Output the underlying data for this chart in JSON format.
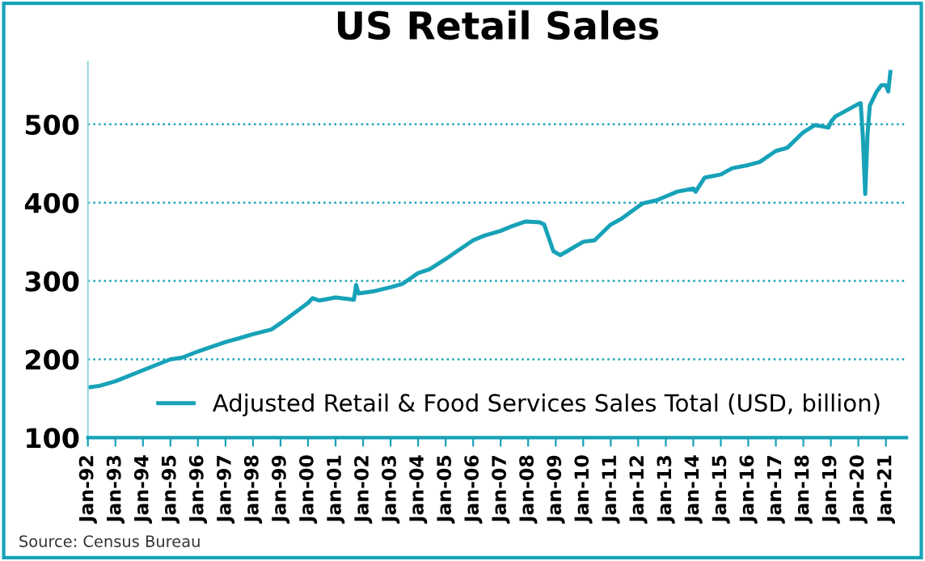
{
  "chart_data": {
    "type": "line",
    "title": "US Retail Sales",
    "annotations": [
      "Source: Census Bureau"
    ],
    "x": [
      "1992-01",
      "1992-06",
      "1993-01",
      "1994-01",
      "1995-01",
      "1995-06",
      "1996-01",
      "1997-01",
      "1997-06",
      "1998-01",
      "1998-09",
      "1999-01",
      "2000-01",
      "2000-03",
      "2000-06",
      "2001-01",
      "2001-09",
      "2001-10",
      "2001-11",
      "2002-06",
      "2003-01",
      "2003-06",
      "2004-01",
      "2004-06",
      "2005-01",
      "2005-06",
      "2006-01",
      "2006-06",
      "2007-01",
      "2007-06",
      "2007-12",
      "2008-06",
      "2008-08",
      "2008-10",
      "2008-12",
      "2009-03",
      "2009-06",
      "2010-01",
      "2010-06",
      "2011-01",
      "2011-06",
      "2012-01",
      "2012-03",
      "2012-09",
      "2013-01",
      "2013-06",
      "2014-01",
      "2014-02",
      "2014-06",
      "2015-01",
      "2015-06",
      "2016-01",
      "2016-06",
      "2017-01",
      "2017-06",
      "2018-01",
      "2018-06",
      "2018-12",
      "2019-01",
      "2019-03",
      "2020-01",
      "2020-02",
      "2020-03",
      "2020-04",
      "2020-05",
      "2020-06",
      "2020-09",
      "2020-11",
      "2021-01",
      "2021-02",
      "2021-03"
    ],
    "series": [
      {
        "name": "Adjusted Retail & Food Services Sales Total (USD, billion)",
        "color": "#17a2b8",
        "values": [
          164,
          166,
          172,
          186,
          200,
          202,
          210,
          222,
          226,
          232,
          238,
          246,
          272,
          278,
          275,
          279,
          276,
          295,
          284,
          287,
          292,
          296,
          310,
          315,
          328,
          338,
          352,
          358,
          364,
          370,
          376,
          375,
          372,
          355,
          338,
          333,
          338,
          350,
          352,
          372,
          380,
          395,
          399,
          403,
          408,
          414,
          418,
          414,
          432,
          436,
          444,
          448,
          452,
          466,
          470,
          490,
          499,
          496,
          503,
          510,
          526,
          527,
          484,
          411,
          486,
          524,
          542,
          550,
          550,
          542,
          567
        ]
      }
    ],
    "ylim": [
      100,
      580
    ],
    "yticks": [
      100,
      200,
      300,
      400,
      500
    ],
    "xlim": [
      "1992-01",
      "2021-10"
    ],
    "xticks": [
      {
        "value": "1992-01",
        "label": "Jan-92"
      },
      {
        "value": "1993-01",
        "label": "Jan-93"
      },
      {
        "value": "1994-01",
        "label": "Jan-94"
      },
      {
        "value": "1995-01",
        "label": "Jan-95"
      },
      {
        "value": "1996-01",
        "label": "Jan-96"
      },
      {
        "value": "1997-01",
        "label": "Jan-97"
      },
      {
        "value": "1998-01",
        "label": "Jan-98"
      },
      {
        "value": "1999-01",
        "label": "Jan-99"
      },
      {
        "value": "2000-01",
        "label": "Jan-00"
      },
      {
        "value": "2001-01",
        "label": "Jan-01"
      },
      {
        "value": "2002-01",
        "label": "Jan-02"
      },
      {
        "value": "2003-01",
        "label": "Jan-03"
      },
      {
        "value": "2004-01",
        "label": "Jan-04"
      },
      {
        "value": "2005-01",
        "label": "Jan-05"
      },
      {
        "value": "2006-01",
        "label": "Jan-06"
      },
      {
        "value": "2007-01",
        "label": "Jan-07"
      },
      {
        "value": "2008-01",
        "label": "Jan-08"
      },
      {
        "value": "2009-01",
        "label": "Jan-09"
      },
      {
        "value": "2010-01",
        "label": "Jan-10"
      },
      {
        "value": "2011-01",
        "label": "Jan-11"
      },
      {
        "value": "2012-01",
        "label": "Jan-12"
      },
      {
        "value": "2013-01",
        "label": "Jan-13"
      },
      {
        "value": "2014-01",
        "label": "Jan-14"
      },
      {
        "value": "2015-01",
        "label": "Jan-15"
      },
      {
        "value": "2016-01",
        "label": "Jan-16"
      },
      {
        "value": "2017-01",
        "label": "Jan-17"
      },
      {
        "value": "2018-01",
        "label": "Jan-18"
      },
      {
        "value": "2019-01",
        "label": "Jan-19"
      },
      {
        "value": "2020-01",
        "label": "Jan-20"
      },
      {
        "value": "2021-01",
        "label": "Jan-21"
      }
    ],
    "grid": "y",
    "legend": "bottom left",
    "marker": "none",
    "line_style": "solid"
  }
}
